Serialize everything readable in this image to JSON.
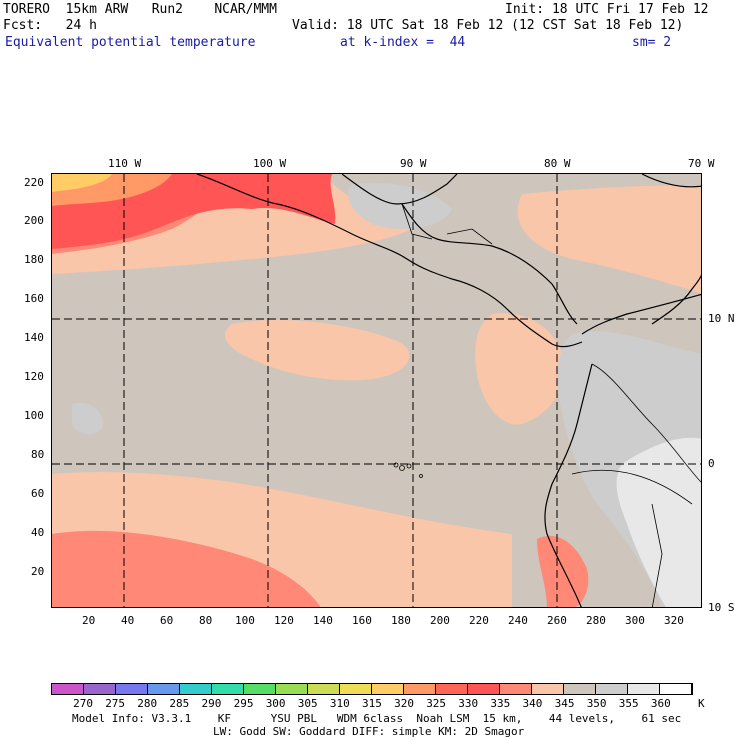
{
  "header": {
    "line1_left": "TORERO  15km ARW   Run2    NCAR/MMM",
    "line1_right": "Init: 18 UTC Fri 17 Feb 12",
    "line2_left": "Fcst:   24 h",
    "line2_right": "Valid: 18 UTC Sat 18 Feb 12 (12 CST Sat 18 Feb 12)",
    "line3_field": "Equivalent potential temperature",
    "line3_level": "at k-index =  44",
    "line3_smooth": "sm= 2"
  },
  "map": {
    "top_lon_labels": [
      "110 W",
      "100 W",
      "90 W",
      "80 W",
      "70 W"
    ],
    "left_grid_labels": [
      "220",
      "200",
      "180",
      "160",
      "140",
      "120",
      "100",
      "80",
      "60",
      "40",
      "20"
    ],
    "bottom_grid_labels": [
      "20",
      "40",
      "60",
      "80",
      "100",
      "120",
      "140",
      "160",
      "180",
      "200",
      "220",
      "240",
      "260",
      "280",
      "300",
      "320"
    ],
    "right_lat_labels": [
      "10 N",
      "0",
      "10 S"
    ]
  },
  "colorbar": {
    "colors": [
      "#cc55cc",
      "#9966cc",
      "#7777ee",
      "#6699ee",
      "#33cccc",
      "#33ddaa",
      "#55dd66",
      "#99dd55",
      "#ccdd55",
      "#eedd55",
      "#ffcc66",
      "#ff9966",
      "#ff6655",
      "#ff5555",
      "#ff8877",
      "#f9c6aa",
      "#cec5bd",
      "#cdcdcd",
      "#e8e8e8",
      "#ffffff"
    ],
    "labels": [
      "270",
      "275",
      "280",
      "285",
      "290",
      "295",
      "300",
      "305",
      "310",
      "315",
      "320",
      "325",
      "330",
      "335",
      "340",
      "345",
      "350",
      "355",
      "360"
    ],
    "unit": "K"
  },
  "footer": {
    "line1": "Model Info: V3.3.1    KF      YSU PBL   WDM 6class  Noah LSM  15 km,    44 levels,    61 sec",
    "line2": "LW: Godd SW: Goddard DIFF: simple KM: 2D Smagor"
  }
}
